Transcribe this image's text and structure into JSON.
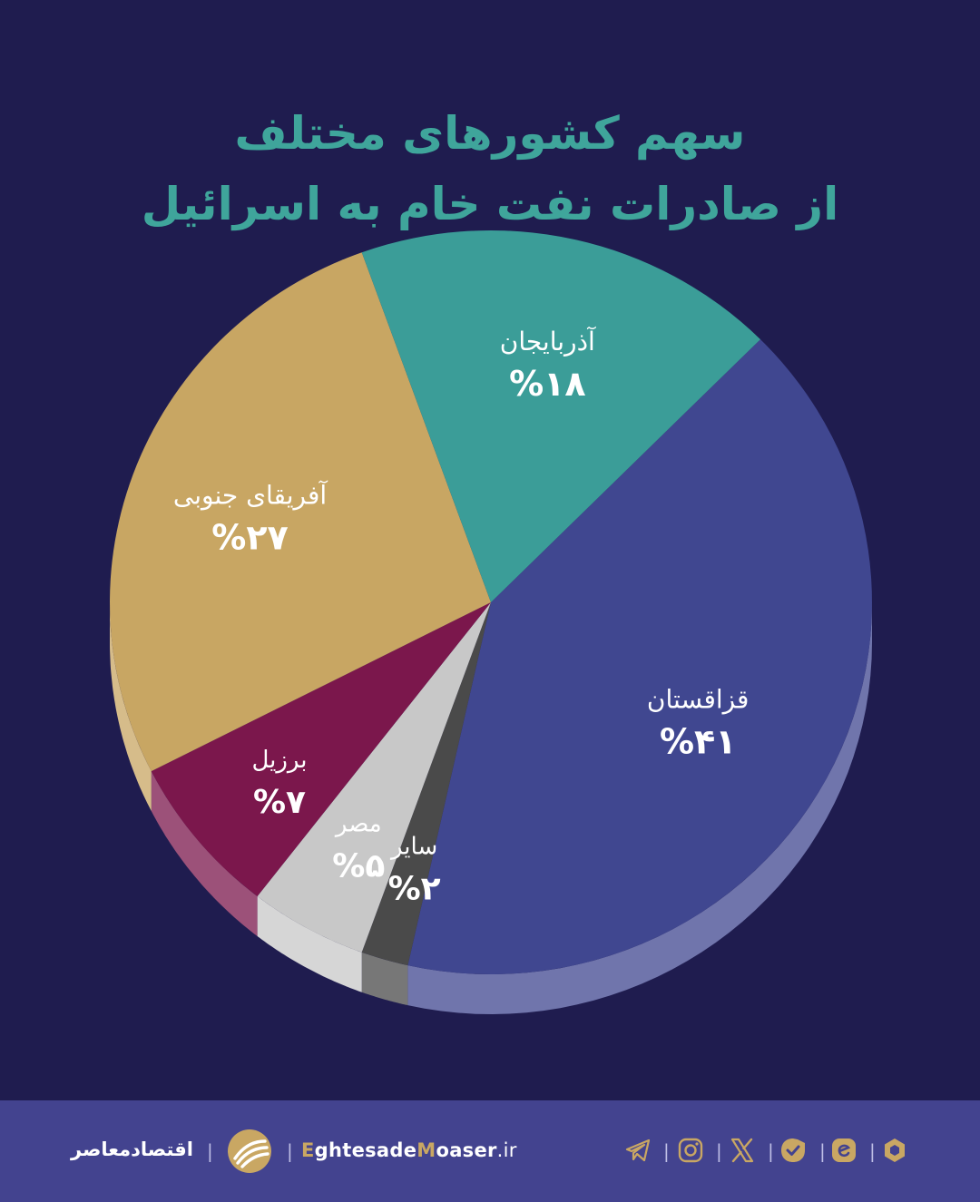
{
  "header": {
    "title_line1": "سهم کشورهای مختلف",
    "title_line2": "از صادرات نفت خام به اسرائیل"
  },
  "chart_data": {
    "type": "pie",
    "title": "سهم کشورهای مختلف از صادرات نفت خام به اسرائیل",
    "slices": [
      {
        "label": "قزاقستان",
        "value": 41,
        "value_label": "%۴۱",
        "color": "#404790"
      },
      {
        "label": "سایر",
        "value": 2,
        "value_label": "%۲",
        "color": "#4a4a4a"
      },
      {
        "label": "مصر",
        "value": 5,
        "value_label": "%۵",
        "color": "#c8c8c8"
      },
      {
        "label": "برزیل",
        "value": 7,
        "value_label": "%۷",
        "color": "#7b174c"
      },
      {
        "label": "آفریقای جنوبی",
        "value": 27,
        "value_label": "%۲۷",
        "color": "#c8a663"
      },
      {
        "label": "آذربایجان",
        "value": 18,
        "value_label": "%۱۸",
        "color": "#3b9d98"
      }
    ]
  },
  "footer": {
    "brand": "اقتصادمعاصر",
    "site_part1": "E",
    "site_part2": "ghtesade",
    "site_part3": "M",
    "site_part4": "oaser",
    "site_tld": ".ir",
    "icons": [
      "telegram-icon",
      "instagram-icon",
      "x-icon",
      "bale-icon",
      "eitaa-icon",
      "rubika-icon"
    ],
    "icon_color": "#c9a763"
  }
}
